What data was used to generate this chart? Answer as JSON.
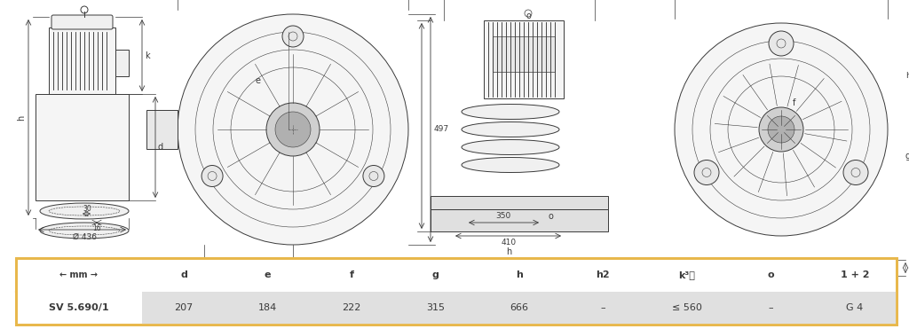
{
  "title": "SV 5.690/1",
  "table_headers": [
    "← mm →",
    "d",
    "e",
    "f",
    "g",
    "h",
    "h2",
    "k³⧩",
    "o",
    "1 + 2"
  ],
  "table_row_label": "SV 5.690/1",
  "table_values": [
    "207",
    "184",
    "222",
    "315",
    "666",
    "–",
    "≤ 560",
    "–",
    "G 4"
  ],
  "bg_color": "#ffffff",
  "table_border_color": "#e8b84b",
  "table_header_bg": "#ffffff",
  "table_row_bg": "#e8e8e8",
  "drawing_color": "#3a3a3a",
  "dim_color": "#3a3a3a",
  "dim_line_color": "#3a3a3a",
  "fig_width": 10.24,
  "fig_height": 3.71
}
